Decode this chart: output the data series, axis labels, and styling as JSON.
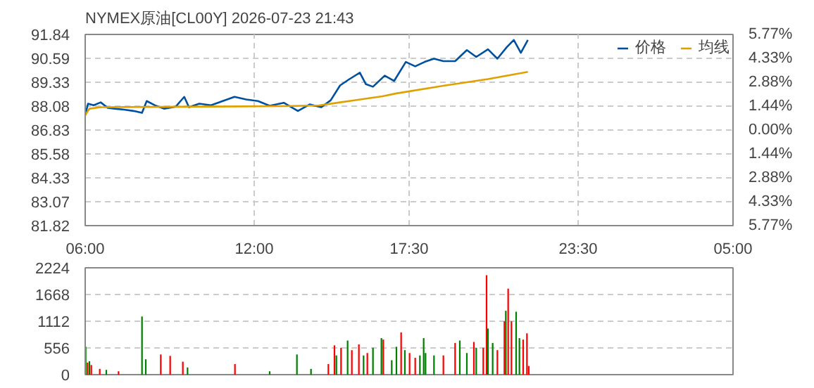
{
  "chart_data": [
    {
      "type": "line",
      "title": "NYMEX原油[CL00Y] 2026-07-23 21:43",
      "legend": "top right",
      "grid": true,
      "line_style": "solid",
      "xlim": [
        "2026-07-23T06:00",
        "2026-07-24T05:00"
      ],
      "xticks": [
        {
          "value": "2026-07-23T06:00",
          "label": "06:00"
        },
        {
          "value": "2026-07-23T12:00",
          "label": "12:00"
        },
        {
          "value": "2026-07-23T17:30",
          "label": "17:30"
        },
        {
          "value": "2026-07-23T23:30",
          "label": "23:30"
        },
        {
          "value": "2026-07-24T05:00",
          "label": "05:00"
        }
      ],
      "ylim": [
        81.82,
        91.84
      ],
      "yticks": [
        81.82,
        83.07,
        84.33,
        85.58,
        86.83,
        88.08,
        89.33,
        90.59,
        91.84
      ],
      "y2lim": [
        -5.77,
        5.77
      ],
      "y2ticks": [
        {
          "value": -5.77,
          "label": "5.77%"
        },
        {
          "value": -4.33,
          "label": "4.33%"
        },
        {
          "value": -2.88,
          "label": "2.88%"
        },
        {
          "value": -1.44,
          "label": "1.44%"
        },
        {
          "value": 0,
          "label": "0.00%"
        },
        {
          "value": 1.44,
          "label": "1.44%"
        },
        {
          "value": 2.88,
          "label": "2.88%"
        },
        {
          "value": 4.33,
          "label": "4.33%"
        },
        {
          "value": 5.77,
          "label": "5.77%"
        }
      ],
      "series": [
        {
          "name": "价格",
          "color": "#0050a0",
          "x": [
            "2026-07-23T06:00",
            "2026-07-23T06:06",
            "2026-07-23T06:18",
            "2026-07-23T06:33",
            "2026-07-23T06:48",
            "2026-07-23T07:03",
            "2026-07-23T07:23",
            "2026-07-23T07:43",
            "2026-07-23T08:01",
            "2026-07-23T08:11",
            "2026-07-23T08:28",
            "2026-07-23T08:48",
            "2026-07-23T09:13",
            "2026-07-23T09:31",
            "2026-07-23T09:41",
            "2026-07-23T10:03",
            "2026-07-23T10:28",
            "2026-07-23T10:53",
            "2026-07-23T11:18",
            "2026-07-23T11:43",
            "2026-07-23T12:08",
            "2026-07-23T12:33",
            "2026-07-23T13:03",
            "2026-07-23T13:33",
            "2026-07-23T13:58",
            "2026-07-23T14:23",
            "2026-07-23T14:43",
            "2026-07-23T15:03",
            "2026-07-23T15:23",
            "2026-07-23T15:45",
            "2026-07-23T15:58",
            "2026-07-23T16:13",
            "2026-07-23T16:38",
            "2026-07-23T16:58",
            "2026-07-23T17:23",
            "2026-07-23T17:43",
            "2026-07-23T18:03",
            "2026-07-23T18:23",
            "2026-07-23T18:43",
            "2026-07-23T19:08",
            "2026-07-23T19:33",
            "2026-07-23T19:53",
            "2026-07-23T20:18",
            "2026-07-23T20:38",
            "2026-07-23T20:58",
            "2026-07-23T21:13",
            "2026-07-23T21:28",
            "2026-07-23T21:43"
          ],
          "values": [
            87.61,
            88.21,
            88.13,
            88.28,
            87.99,
            87.95,
            87.9,
            87.83,
            87.73,
            88.35,
            88.13,
            87.95,
            88.06,
            88.57,
            88.03,
            88.21,
            88.13,
            88.35,
            88.57,
            88.43,
            88.35,
            88.1,
            88.26,
            87.83,
            88.17,
            88.03,
            88.39,
            89.17,
            89.5,
            89.84,
            89.23,
            89.1,
            89.68,
            89.4,
            90.4,
            90.17,
            90.4,
            90.57,
            90.44,
            90.44,
            91.02,
            90.66,
            91.06,
            90.57,
            91.17,
            91.55,
            90.88,
            91.55
          ]
        },
        {
          "name": "均线",
          "color": "#e0a000",
          "x": [
            "2026-07-23T06:00",
            "2026-07-23T06:09",
            "2026-07-23T06:33",
            "2026-07-23T10:33",
            "2026-07-23T13:03",
            "2026-07-23T14:18",
            "2026-07-23T15:03",
            "2026-07-23T16:33",
            "2026-07-23T17:03",
            "2026-07-23T18:43",
            "2026-07-23T20:18",
            "2026-07-23T21:43"
          ],
          "values": [
            87.61,
            87.95,
            88.03,
            88.06,
            88.08,
            88.12,
            88.28,
            88.6,
            88.75,
            89.15,
            89.5,
            89.88
          ]
        }
      ]
    },
    {
      "type": "bar",
      "grid": true,
      "tick_labels": "y",
      "xlim": [
        "2026-07-23T06:00",
        "2026-07-24T05:00"
      ],
      "ylim": [
        0,
        2224
      ],
      "yticks": [
        0,
        556,
        1112,
        1668,
        2224
      ],
      "x": [
        "2026-07-23T06:01",
        "2026-07-23T06:05",
        "2026-07-23T06:09",
        "2026-07-23T06:13",
        "2026-07-23T06:31",
        "2026-07-23T06:45",
        "2026-07-23T07:11",
        "2026-07-23T08:01",
        "2026-07-23T08:09",
        "2026-07-23T08:41",
        "2026-07-23T09:01",
        "2026-07-23T09:28",
        "2026-07-23T09:38",
        "2026-07-23T11:19",
        "2026-07-23T12:33",
        "2026-07-23T13:31",
        "2026-07-23T14:01",
        "2026-07-23T14:38",
        "2026-07-23T14:51",
        "2026-07-23T14:55",
        "2026-07-23T15:05",
        "2026-07-23T15:19",
        "2026-07-23T15:28",
        "2026-07-23T15:43",
        "2026-07-23T15:53",
        "2026-07-23T16:01",
        "2026-07-23T16:13",
        "2026-07-23T16:31",
        "2026-07-23T16:35",
        "2026-07-23T16:53",
        "2026-07-23T17:03",
        "2026-07-23T17:13",
        "2026-07-23T17:21",
        "2026-07-23T17:31",
        "2026-07-23T17:43",
        "2026-07-23T17:53",
        "2026-07-23T18:01",
        "2026-07-23T18:05",
        "2026-07-23T18:23",
        "2026-07-23T18:43",
        "2026-07-23T19:08",
        "2026-07-23T19:18",
        "2026-07-23T19:33",
        "2026-07-23T19:48",
        "2026-07-23T19:53",
        "2026-07-23T20:08",
        "2026-07-23T20:15",
        "2026-07-23T20:18",
        "2026-07-23T20:28",
        "2026-07-23T20:38",
        "2026-07-23T20:53",
        "2026-07-23T20:56",
        "2026-07-23T21:01",
        "2026-07-23T21:08",
        "2026-07-23T21:18",
        "2026-07-23T21:25",
        "2026-07-23T21:33",
        "2026-07-23T21:41",
        "2026-07-23T21:45"
      ],
      "values": [
        580,
        250,
        280,
        200,
        120,
        100,
        70,
        1210,
        320,
        420,
        390,
        270,
        150,
        220,
        70,
        420,
        120,
        220,
        610,
        400,
        560,
        710,
        510,
        630,
        400,
        450,
        560,
        760,
        730,
        300,
        580,
        880,
        510,
        450,
        350,
        400,
        760,
        450,
        400,
        400,
        660,
        710,
        450,
        680,
        560,
        560,
        2070,
        960,
        660,
        510,
        1110,
        1330,
        1790,
        1110,
        1310,
        760,
        730,
        860,
        180
      ],
      "colors": [
        "#008000",
        "#ff0000",
        "#008000",
        "#ff0000",
        "#ff0000",
        "#008000",
        "#ff0000",
        "#008000",
        "#008000",
        "#ff0000",
        "#ff0000",
        "#ff0000",
        "#008000",
        "#ff0000",
        "#008000",
        "#008000",
        "#008000",
        "#ff0000",
        "#ff0000",
        "#008000",
        "#ff0000",
        "#008000",
        "#ff0000",
        "#ff0000",
        "#008000",
        "#ff0000",
        "#008000",
        "#008000",
        "#ff0000",
        "#008000",
        "#008000",
        "#ff0000",
        "#008000",
        "#ff0000",
        "#ff0000",
        "#008000",
        "#008000",
        "#008000",
        "#008000",
        "#ff0000",
        "#ff0000",
        "#008000",
        "#008000",
        "#ff0000",
        "#008000",
        "#ff0000",
        "#ff0000",
        "#008000",
        "#008000",
        "#ff0000",
        "#ff0000",
        "#008000",
        "#ff0000",
        "#ff0000",
        "#008000",
        "#008000",
        "#ff0000",
        "#ff0000",
        "#ff0000"
      ]
    }
  ]
}
